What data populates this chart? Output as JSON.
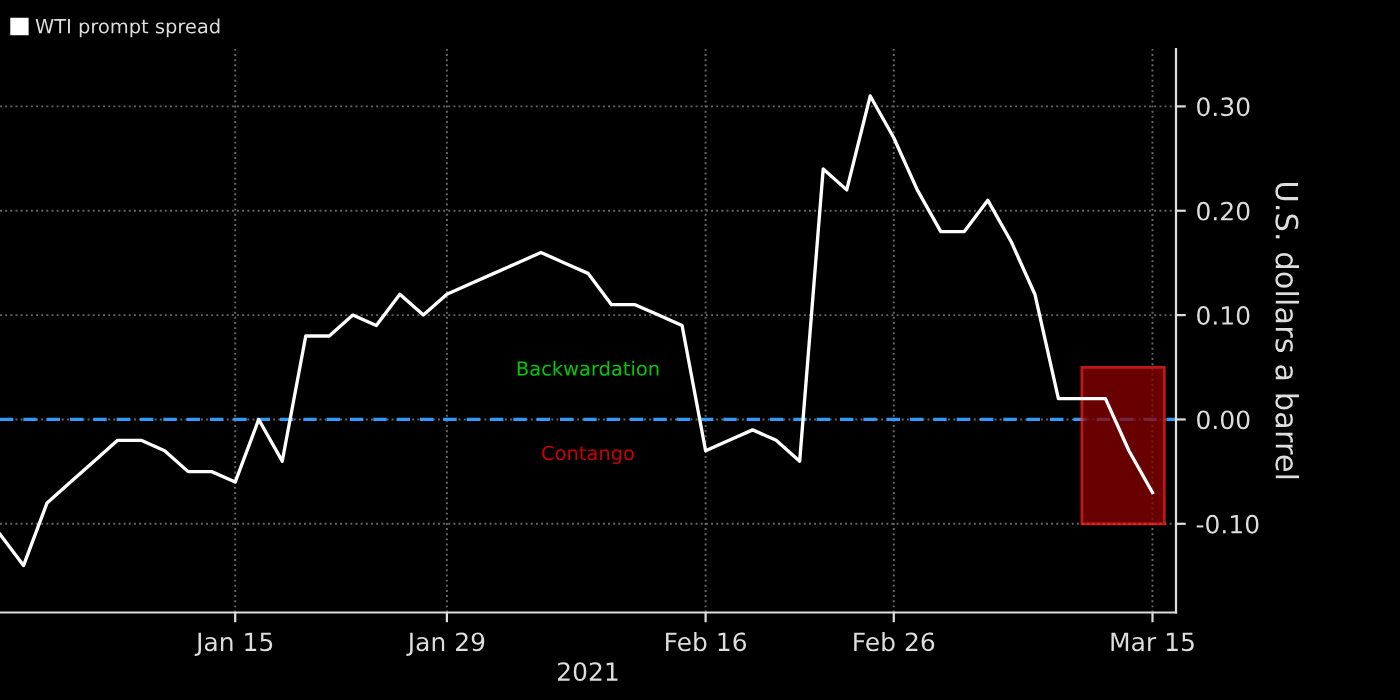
{
  "chart_data": {
    "type": "line",
    "categories": [
      null,
      null,
      null,
      null,
      null,
      null,
      null,
      null,
      null,
      null,
      "Jan 15",
      null,
      null,
      null,
      null,
      null,
      null,
      null,
      null,
      "Jan 29",
      null,
      null,
      null,
      null,
      null,
      null,
      null,
      null,
      null,
      null,
      "Feb 16",
      null,
      null,
      null,
      null,
      null,
      null,
      null,
      "Feb 26",
      null,
      null,
      null,
      null,
      null,
      null,
      null,
      null,
      null,
      null,
      "Mar 15"
    ],
    "series": [
      {
        "name": "WTI prompt spread",
        "color": "#ffffff",
        "values": [
          -0.11,
          -0.14,
          -0.08,
          -0.06,
          -0.04,
          -0.02,
          -0.02,
          -0.03,
          -0.05,
          -0.05,
          -0.06,
          0.0,
          -0.04,
          0.08,
          0.08,
          0.1,
          0.09,
          0.12,
          0.1,
          0.12,
          0.13,
          0.14,
          0.15,
          0.16,
          0.15,
          0.14,
          0.11,
          0.11,
          0.1,
          0.09,
          -0.03,
          -0.02,
          -0.01,
          -0.02,
          -0.04,
          0.24,
          0.22,
          0.31,
          0.27,
          0.22,
          0.18,
          0.18,
          0.21,
          0.17,
          0.12,
          0.02,
          0.02,
          0.02,
          -0.03,
          -0.07
        ]
      }
    ],
    "xlabel": "2021",
    "ylabel": "U.S. dollars a barrel",
    "ylim": [
      -0.185,
      0.355
    ],
    "yticks": [
      {
        "value": -0.1,
        "label": "-0.10"
      },
      {
        "value": 0.0,
        "label": "0.00"
      },
      {
        "value": 0.1,
        "label": "0.10"
      },
      {
        "value": 0.2,
        "label": "0.20"
      },
      {
        "value": 0.3,
        "label": "0.30"
      }
    ],
    "ref_lines": [
      {
        "axis": "y",
        "value": 0,
        "color": "#3399ff",
        "line_style": "dashed"
      }
    ],
    "bands": [
      {
        "axis": "y",
        "from": -0.1,
        "to": 0.05,
        "color": "#8b0000"
      }
    ],
    "annotations": [
      "Backwardation",
      "Contango"
    ],
    "grid": true,
    "legend": "top left",
    "line_style": "solid",
    "marker": "none"
  }
}
